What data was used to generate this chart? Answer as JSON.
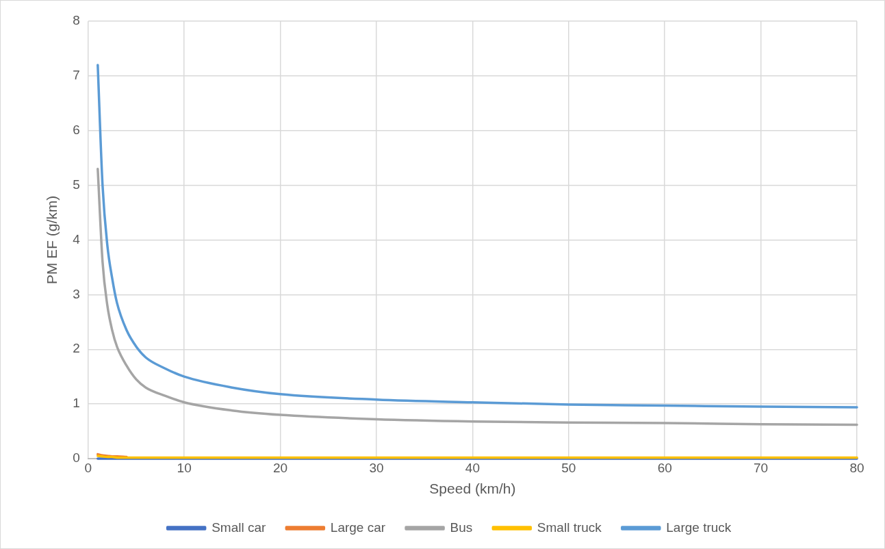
{
  "chart_data": {
    "type": "line",
    "xlabel": "Speed (km/h)",
    "ylabel": "PM EF (g/km)",
    "x": [
      1,
      1.5,
      2,
      2.5,
      3,
      4,
      5,
      6,
      8,
      10,
      15,
      20,
      30,
      40,
      50,
      60,
      70,
      80
    ],
    "series": [
      {
        "name": "Small car",
        "color": "#4472c4",
        "values": [
          0,
          0,
          0,
          0,
          0,
          0,
          0,
          0,
          0,
          0,
          0,
          0,
          0,
          0,
          0,
          0,
          0,
          0
        ]
      },
      {
        "name": "Large car",
        "color": "#ed7d31",
        "values": [
          0.08,
          0.06,
          0.05,
          0.04,
          0.04,
          0.03,
          null,
          null,
          null,
          null,
          null,
          null,
          null,
          null,
          null,
          null,
          null,
          null
        ]
      },
      {
        "name": "Bus",
        "color": "#a5a5a5",
        "values": [
          5.3,
          3.6,
          2.8,
          2.35,
          2.05,
          1.7,
          1.45,
          1.3,
          1.15,
          1.03,
          0.88,
          0.8,
          0.72,
          0.68,
          0.66,
          0.65,
          0.63,
          0.62
        ]
      },
      {
        "name": "Small truck",
        "color": "#ffc000",
        "values": [
          0.05,
          0.04,
          0.03,
          0.03,
          0.02,
          0.02,
          0.02,
          0.02,
          0.02,
          0.02,
          0.02,
          0.02,
          0.02,
          0.02,
          0.02,
          0.02,
          0.02,
          0.02
        ]
      },
      {
        "name": "Large truck",
        "color": "#5b9bd5",
        "values": [
          7.2,
          5.0,
          3.9,
          3.3,
          2.85,
          2.35,
          2.05,
          1.85,
          1.65,
          1.5,
          1.3,
          1.18,
          1.08,
          1.03,
          0.99,
          0.97,
          0.95,
          0.94
        ]
      }
    ],
    "xlim": [
      0,
      80
    ],
    "xticks": [
      0,
      10,
      20,
      30,
      40,
      50,
      60,
      70,
      80
    ],
    "ylim": [
      0,
      8
    ],
    "yticks": [
      0,
      1,
      2,
      3,
      4,
      5,
      6,
      7,
      8
    ],
    "grid": true,
    "legend": "bottom",
    "marker": "none",
    "line_style": "solid"
  }
}
